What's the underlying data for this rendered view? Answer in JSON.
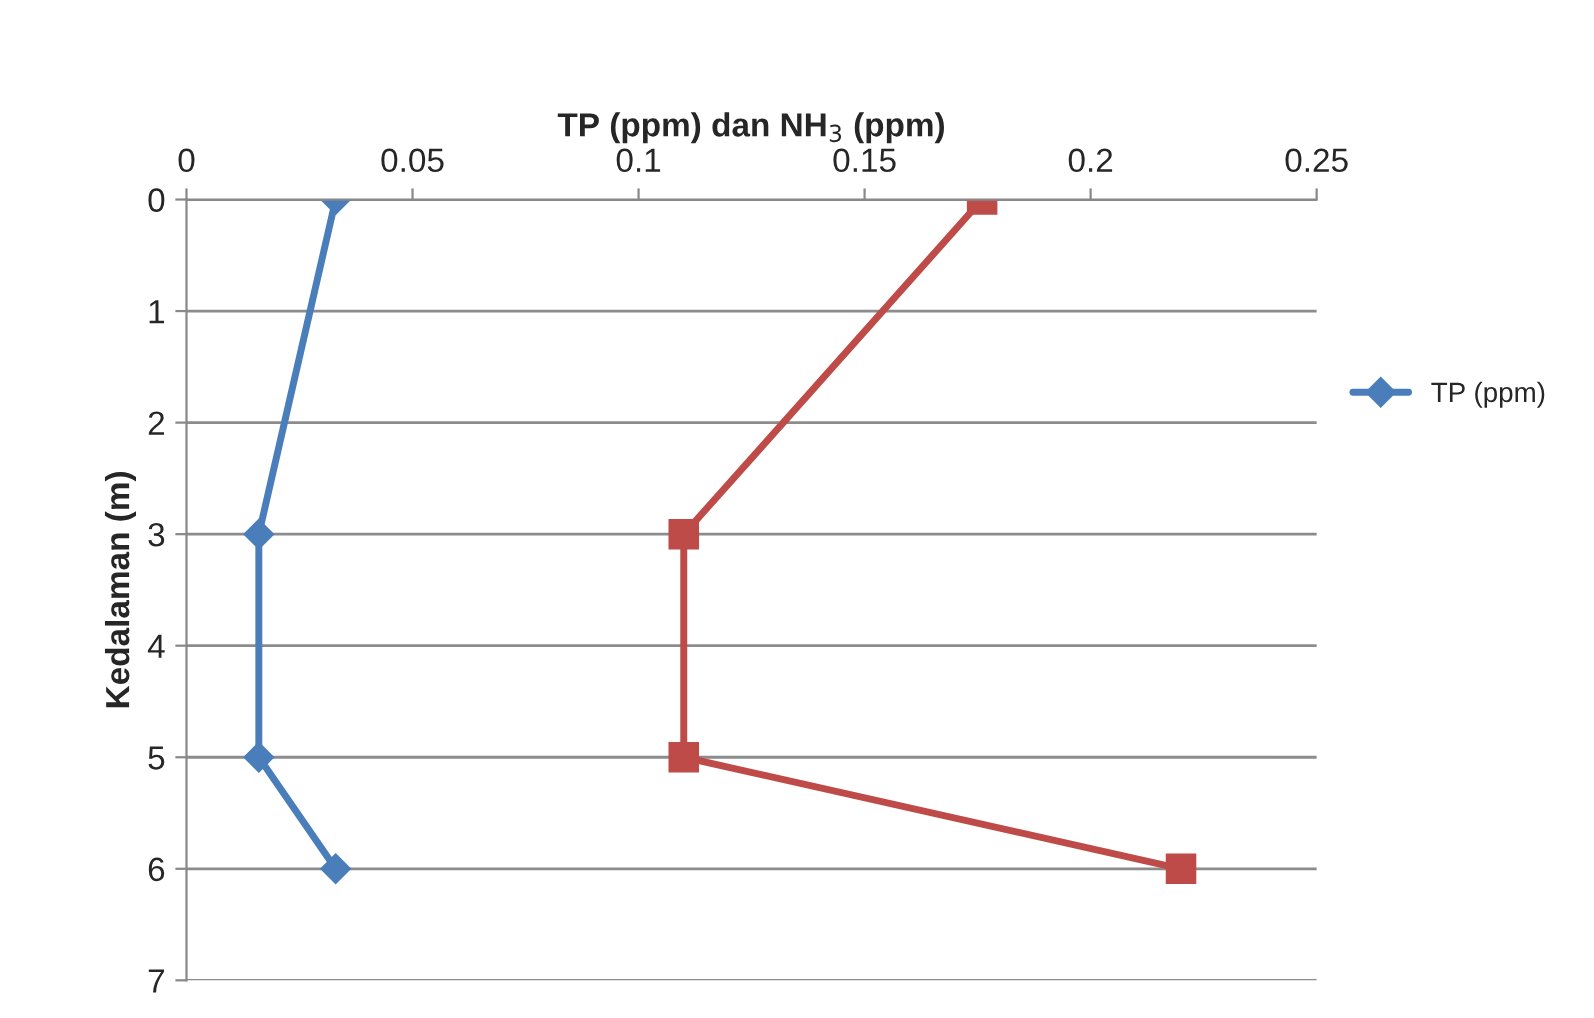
{
  "chart_data": {
    "type": "line",
    "xlabel": "TP (ppm) dan NH$_{3}$ (ppm)",
    "ylabel": "Kedalaman (m)",
    "xlim": [
      0,
      0.25
    ],
    "xticks": [
      0,
      0.05,
      0.1,
      0.15,
      0.2,
      0.25
    ],
    "ylim": [
      7,
      0
    ],
    "yticks": [
      0,
      1,
      2,
      3,
      4,
      5,
      6,
      7
    ],
    "grid": "y",
    "legend": "right",
    "series": [
      {
        "name": "TP (ppm)",
        "color": "#4a7ebb",
        "marker": "diamond",
        "x": [
          0.033,
          0.016,
          0.016,
          0.033
        ],
        "values": [
          0,
          3,
          5,
          6
        ]
      },
      {
        "color": "#be4b48",
        "marker": "square",
        "x": [
          0.176,
          0.11,
          0.11,
          0.22
        ],
        "values": [
          0,
          3,
          5,
          6
        ]
      }
    ]
  }
}
